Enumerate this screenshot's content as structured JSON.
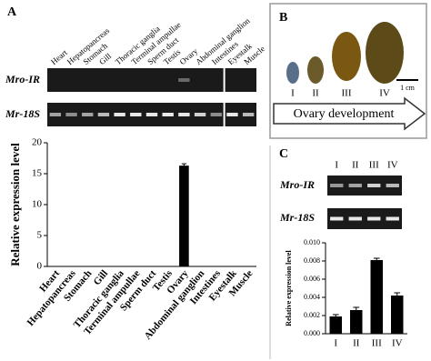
{
  "panels": {
    "a": "A",
    "b": "B",
    "c": "C"
  },
  "gel_a": {
    "lanes": [
      "Heart",
      "Hepatopancreas",
      "Stomach",
      "Gill",
      "Thoracic ganglia",
      "Terminal ampullae",
      "Sperm duct",
      "Testis",
      "Ovary",
      "Abdominal ganglion",
      "Intestines",
      "Eyestalk",
      "Muscle"
    ],
    "rows": [
      "Mro-IR",
      "Mr-18S"
    ]
  },
  "ovary": {
    "stages": [
      "I",
      "II",
      "III",
      "IV"
    ],
    "scale": "1 cm",
    "arrow": "Ovary development"
  },
  "gel_c": {
    "lanes": [
      "I",
      "II",
      "III",
      "IV"
    ],
    "rows": [
      "Mro-IR",
      "Mr-18S"
    ]
  },
  "chart_data": [
    {
      "type": "bar",
      "ylabel": "Relative expression level",
      "categories": [
        "Heart",
        "Hepatopancreas",
        "Stomach",
        "Gill",
        "Thoracic ganglia",
        "Terminal ampullae",
        "Sperm duct",
        "Testis",
        "Ovary",
        "Abdominal ganglion",
        "Intestines",
        "Eyestalk",
        "Muscle"
      ],
      "values": [
        0,
        0,
        0,
        0,
        0,
        0,
        0,
        0,
        16.3,
        0,
        0,
        0,
        0
      ],
      "errors": [
        0,
        0,
        0,
        0,
        0,
        0,
        0,
        0,
        0.3,
        0,
        0,
        0,
        0
      ],
      "color": "#000000",
      "ylim": [
        0,
        20
      ],
      "yticks": [
        0,
        5,
        10,
        15,
        20
      ]
    },
    {
      "type": "bar",
      "ylabel": "Relative expression level",
      "categories": [
        "I",
        "II",
        "III",
        "IV"
      ],
      "values": [
        0.0019,
        0.0026,
        0.0081,
        0.0042
      ],
      "errors": [
        0.0002,
        0.0003,
        0.0002,
        0.0003
      ],
      "color": "#000000",
      "ylim": [
        0,
        0.01
      ],
      "yticks": [
        {
          "value": 0,
          "label": "0.000"
        },
        0.002,
        0.004,
        0.006,
        0.008,
        {
          "value": 0.01,
          "label": "0.010"
        }
      ]
    }
  ]
}
